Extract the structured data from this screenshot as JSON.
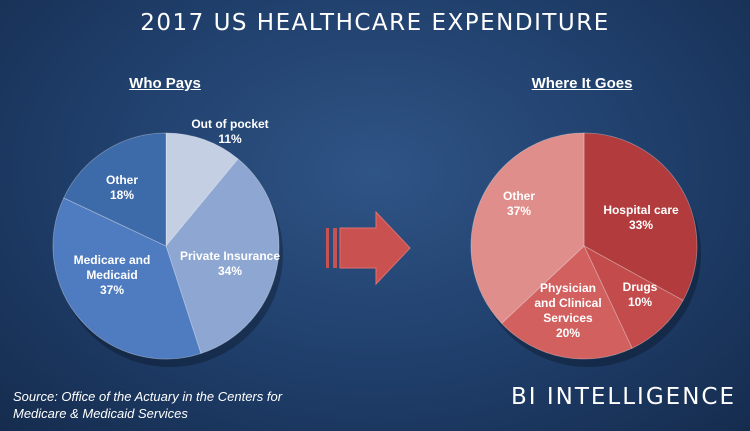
{
  "title": "2017 US HEALTHCARE EXPENDITURE",
  "source_lines": [
    "Source: Office of the Actuary in the Centers for",
    "Medicare & Medicaid Services"
  ],
  "brand": "BI INTELLIGENCE",
  "colors": {
    "background": "#1f3e6a",
    "arrow": "#c9514f",
    "who_pays": [
      "#c5cfe4",
      "#8ea7d2",
      "#4f7cc0",
      "#3d6aa8"
    ],
    "where_it_goes": [
      "#b13b3d",
      "#c34b4c",
      "#d2605f",
      "#e08e8b"
    ]
  },
  "chart_data": [
    {
      "type": "pie",
      "title": "Who Pays",
      "slices": [
        {
          "label": "Out of pocket",
          "value": 11,
          "display": "11%"
        },
        {
          "label": "Private Insurance",
          "value": 34,
          "display": "34%"
        },
        {
          "label": "Medicare and Medicaid",
          "value": 37,
          "display": "37%"
        },
        {
          "label": "Other",
          "value": 18,
          "display": "18%"
        }
      ]
    },
    {
      "type": "pie",
      "title": "Where It Goes",
      "slices": [
        {
          "label": "Hospital care",
          "value": 33,
          "display": "33%"
        },
        {
          "label": "Drugs",
          "value": 10,
          "display": "10%"
        },
        {
          "label": "Physician and Clinical Services",
          "value": 20,
          "display": "20%"
        },
        {
          "label": "Other",
          "value": 37,
          "display": "37%"
        }
      ]
    }
  ]
}
